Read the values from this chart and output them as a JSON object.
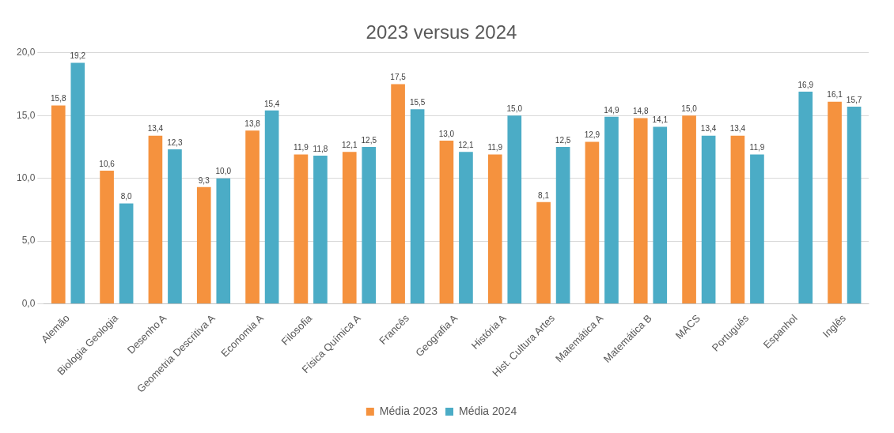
{
  "chart_data": {
    "type": "bar",
    "title": "2023 versus 2024",
    "categories": [
      "Alemão",
      "Biologia Geologia",
      "Desenho A",
      "Geometria Descritiva A",
      "Economia A",
      "Filosofia",
      "Física Química A",
      "Francês",
      "Geografia A",
      "História A",
      "Hist. Cultura Artes",
      "Matemática A",
      "Matemática B",
      "MACS",
      "Português",
      "Espanhol",
      "Inglês"
    ],
    "series": [
      {
        "name": "Média 2023",
        "color": "#f5923e",
        "values": [
          15.8,
          10.6,
          13.4,
          9.3,
          13.8,
          11.9,
          12.1,
          17.5,
          13.0,
          11.9,
          8.1,
          12.9,
          14.8,
          15.0,
          13.4,
          null,
          16.1
        ],
        "value_labels": [
          "15,8",
          "10,6",
          "13,4",
          "9,3",
          "13,8",
          "11,9",
          "12,1",
          "17,5",
          "13,0",
          "11,9",
          "8,1",
          "12,9",
          "14,8",
          "15,0",
          "13,4",
          null,
          "16,1"
        ]
      },
      {
        "name": "Média 2024",
        "color": "#4bacc6",
        "values": [
          19.2,
          8.0,
          12.3,
          10.0,
          15.4,
          11.8,
          12.5,
          15.5,
          12.1,
          15.0,
          12.5,
          14.9,
          14.1,
          13.4,
          11.9,
          16.9,
          15.7
        ],
        "value_labels": [
          "19,2",
          "8,0",
          "12,3",
          "10,0",
          "15,4",
          "11,8",
          "12,5",
          "15,5",
          "12,1",
          "15,0",
          "12,5",
          "14,9",
          "14,1",
          "13,4",
          "11,9",
          "16,9",
          "15,7"
        ]
      }
    ],
    "ylim": [
      0,
      20
    ],
    "yticks": [
      {
        "value": 0,
        "label": "0,0"
      },
      {
        "value": 5,
        "label": "5,0"
      },
      {
        "value": 10,
        "label": "10,0"
      },
      {
        "value": 15,
        "label": "15,0"
      },
      {
        "value": 20,
        "label": "20,0"
      }
    ],
    "grid": "y",
    "legend": "bottom"
  }
}
